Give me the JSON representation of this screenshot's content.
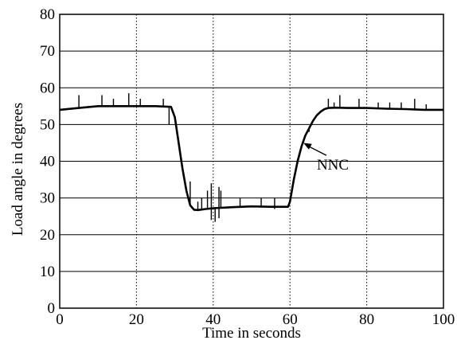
{
  "chart_data": {
    "type": "line",
    "xlabel": "Time in seconds",
    "ylabel": "Load angle in degrees",
    "xlim": [
      0,
      100
    ],
    "ylim": [
      0,
      80
    ],
    "x_ticks": [
      "0",
      "20",
      "40",
      "60",
      "80",
      "100"
    ],
    "y_ticks": [
      "0",
      "10",
      "20",
      "30",
      "40",
      "50",
      "60",
      "70",
      "80"
    ],
    "grid": {
      "vertical": "dotted",
      "horizontal": "solid"
    },
    "series": [
      {
        "name": "NNC",
        "color": "#000000",
        "x": [
          0,
          5,
          10,
          15,
          20,
          25,
          29,
          30,
          31,
          32,
          33,
          34,
          35,
          36,
          38,
          40,
          45,
          50,
          55,
          59.5,
          60,
          61,
          62,
          63,
          64,
          65,
          66,
          67,
          68,
          69,
          70,
          72,
          75,
          80,
          85,
          90,
          95,
          100
        ],
        "y": [
          54,
          54.5,
          55,
          55,
          55,
          55,
          54.8,
          52,
          45,
          38,
          32,
          28,
          26.8,
          26.7,
          27,
          27.2,
          27.5,
          27.7,
          27.6,
          27.6,
          29,
          35,
          40,
          44,
          47,
          49,
          51,
          52.5,
          53.5,
          54.2,
          54.5,
          54.6,
          54.5,
          54.5,
          54.3,
          54.2,
          54,
          54
        ]
      }
    ],
    "spikes": [
      {
        "x": 5,
        "top": 58,
        "bottom": 54.5
      },
      {
        "x": 11,
        "top": 58,
        "bottom": 55
      },
      {
        "x": 14,
        "top": 57,
        "bottom": 55
      },
      {
        "x": 18,
        "top": 58.5,
        "bottom": 55
      },
      {
        "x": 21,
        "top": 57,
        "bottom": 55
      },
      {
        "x": 27,
        "top": 57,
        "bottom": 55
      },
      {
        "x": 28.5,
        "top": 55,
        "bottom": 50
      },
      {
        "x": 34,
        "top": 34.5,
        "bottom": 28
      },
      {
        "x": 36,
        "top": 29,
        "bottom": 26.8
      },
      {
        "x": 37,
        "top": 30,
        "bottom": 26.7
      },
      {
        "x": 38.5,
        "top": 32,
        "bottom": 27
      },
      {
        "x": 39.5,
        "top": 34,
        "bottom": 24
      },
      {
        "x": 40.5,
        "top": 27.5,
        "bottom": 23.5
      },
      {
        "x": 41.5,
        "top": 33,
        "bottom": 24.5
      },
      {
        "x": 42,
        "top": 32,
        "bottom": 27.3
      },
      {
        "x": 47,
        "top": 30,
        "bottom": 27.5
      },
      {
        "x": 52.5,
        "top": 30,
        "bottom": 27.7
      },
      {
        "x": 56,
        "top": 30,
        "bottom": 27
      },
      {
        "x": 65,
        "top": 49,
        "bottom": 48
      },
      {
        "x": 70,
        "top": 57,
        "bottom": 54.5
      },
      {
        "x": 71.5,
        "top": 56,
        "bottom": 54.5
      },
      {
        "x": 73,
        "top": 58,
        "bottom": 54.6
      },
      {
        "x": 78,
        "top": 57,
        "bottom": 54.5
      },
      {
        "x": 83,
        "top": 56,
        "bottom": 54.5
      },
      {
        "x": 86,
        "top": 56,
        "bottom": 54.3
      },
      {
        "x": 89,
        "top": 56,
        "bottom": 54.2
      },
      {
        "x": 92.5,
        "top": 57,
        "bottom": 54.2
      },
      {
        "x": 95.5,
        "top": 55.5,
        "bottom": 54
      }
    ],
    "annotations": [
      {
        "text": "NNC",
        "x": 67,
        "y": 39,
        "arrow_to": [
          63.5,
          45
        ]
      }
    ]
  }
}
